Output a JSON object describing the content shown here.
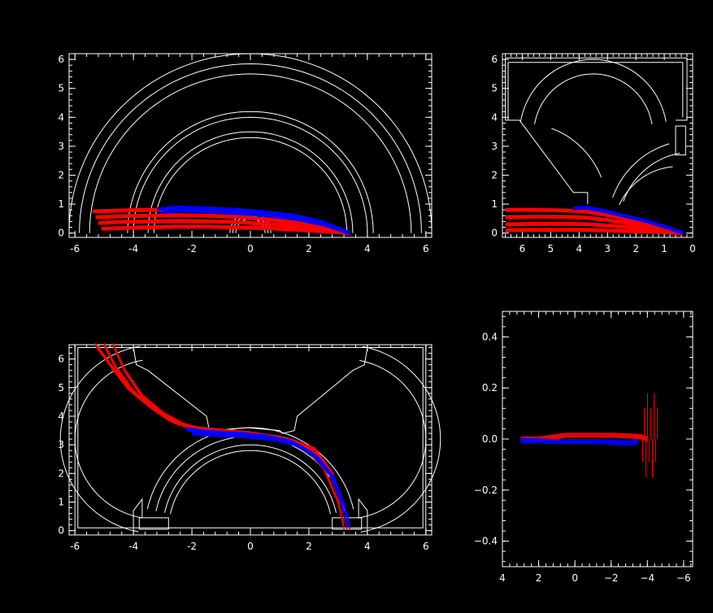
{
  "chart_data": [
    {
      "type": "line",
      "title": "",
      "xlabel": "",
      "ylabel": "",
      "xlim": [
        -6.2,
        6.2
      ],
      "ylim": [
        -0.15,
        6.2
      ],
      "x_ticks": [
        -6,
        -4,
        -2,
        0,
        2,
        4,
        6
      ],
      "y_ticks": [
        0,
        1,
        2,
        3,
        4,
        5,
        6
      ],
      "x_tick_labels": [
        "-6",
        "-4",
        "-2",
        "0",
        "2",
        "4",
        "6"
      ],
      "y_tick_labels": [
        "0",
        "1",
        "2",
        "3",
        "4",
        "5",
        "6"
      ],
      "grid": false,
      "colors": {
        "background": "#000000",
        "axes": "#ffffff",
        "outline": "#ffffff",
        "series_a": "#ff0000",
        "series_b": "#0000ff"
      },
      "arc_radii": [
        0.5,
        0.6,
        0.7,
        3.3,
        3.5,
        4.0,
        4.2,
        5.5,
        5.85,
        6.2
      ],
      "series": [
        {
          "color": "#ff0000",
          "x": [
            -5.4,
            -4.5,
            -3.5,
            -2.5,
            -1.5,
            -0.5,
            0.5,
            1.5,
            2.5,
            3.4
          ],
          "y": [
            0.75,
            0.78,
            0.8,
            0.8,
            0.78,
            0.72,
            0.62,
            0.48,
            0.28,
            0.0
          ]
        },
        {
          "color": "#ff0000",
          "x": [
            -5.3,
            -4.5,
            -3.5,
            -2.5,
            -1.5,
            -0.5,
            0.5,
            1.5,
            2.5,
            3.4
          ],
          "y": [
            0.55,
            0.58,
            0.6,
            0.62,
            0.6,
            0.56,
            0.48,
            0.36,
            0.2,
            0.0
          ]
        },
        {
          "color": "#ff0000",
          "x": [
            -5.2,
            -4.5,
            -3.5,
            -2.5,
            -1.5,
            -0.5,
            0.5,
            1.5,
            2.5,
            3.4
          ],
          "y": [
            0.35,
            0.38,
            0.4,
            0.42,
            0.41,
            0.38,
            0.32,
            0.24,
            0.13,
            0.0
          ]
        },
        {
          "color": "#ff0000",
          "x": [
            -5.1,
            -4.5,
            -3.5,
            -2.5,
            -1.5,
            -0.5,
            0.5,
            1.5,
            2.5,
            3.4
          ],
          "y": [
            0.15,
            0.17,
            0.2,
            0.22,
            0.22,
            0.2,
            0.17,
            0.12,
            0.06,
            0.0
          ]
        },
        {
          "color": "#0000ff",
          "x": [
            -3.2,
            -2.5,
            -1.5,
            -0.5,
            0.5,
            1.5,
            2.5,
            3.4
          ],
          "y": [
            0.82,
            0.88,
            0.85,
            0.8,
            0.72,
            0.6,
            0.36,
            0.0
          ]
        },
        {
          "color": "#0000ff",
          "x": [
            -3.0,
            -2.5,
            -1.5,
            -0.5,
            0.5,
            1.5,
            2.5,
            3.4
          ],
          "y": [
            0.72,
            0.78,
            0.76,
            0.7,
            0.62,
            0.5,
            0.3,
            0.0
          ]
        }
      ]
    },
    {
      "type": "line",
      "title": "",
      "xlabel": "",
      "ylabel": "",
      "xlim": [
        6.7,
        0
      ],
      "ylim": [
        -0.15,
        6.2
      ],
      "x_ticks": [
        6,
        5,
        4,
        3,
        2,
        1,
        0
      ],
      "y_ticks": [
        0,
        1,
        2,
        3,
        4,
        5,
        6
      ],
      "x_tick_labels": [
        "6",
        "5",
        "4",
        "3",
        "2",
        "1",
        "0"
      ],
      "y_tick_labels": [
        "0",
        "1",
        "2",
        "3",
        "4",
        "5",
        "6"
      ],
      "grid": false,
      "series": [
        {
          "color": "#ff0000",
          "x": [
            6.6,
            5.5,
            4.5,
            3.8,
            3.0,
            2.0,
            1.0,
            0.35
          ],
          "y": [
            0.8,
            0.8,
            0.78,
            0.75,
            0.62,
            0.42,
            0.2,
            0.0
          ]
        },
        {
          "color": "#ff0000",
          "x": [
            6.6,
            5.5,
            4.5,
            3.8,
            3.0,
            2.0,
            1.0,
            0.35
          ],
          "y": [
            0.55,
            0.57,
            0.56,
            0.54,
            0.45,
            0.3,
            0.14,
            0.0
          ]
        },
        {
          "color": "#ff0000",
          "x": [
            6.6,
            5.5,
            4.5,
            3.8,
            3.0,
            2.0,
            1.0,
            0.35
          ],
          "y": [
            0.3,
            0.32,
            0.32,
            0.31,
            0.26,
            0.18,
            0.08,
            0.0
          ]
        },
        {
          "color": "#ff0000",
          "x": [
            6.6,
            5.5,
            4.5,
            3.8,
            3.0,
            2.0,
            1.0,
            0.35
          ],
          "y": [
            0.1,
            0.11,
            0.11,
            0.11,
            0.09,
            0.06,
            0.03,
            0.0
          ]
        },
        {
          "color": "#0000ff",
          "x": [
            4.2,
            3.8,
            3.2,
            2.5,
            1.5,
            0.8,
            0.35
          ],
          "y": [
            0.85,
            0.88,
            0.78,
            0.62,
            0.38,
            0.16,
            0.0
          ]
        }
      ]
    },
    {
      "type": "line",
      "title": "",
      "xlabel": "",
      "ylabel": "",
      "xlim": [
        -6.2,
        6.2
      ],
      "ylim": [
        -0.15,
        6.5
      ],
      "x_ticks": [
        -6,
        -4,
        -2,
        0,
        2,
        4,
        6
      ],
      "y_ticks": [
        0,
        1,
        2,
        3,
        4,
        5,
        6
      ],
      "x_tick_labels": [
        "-6",
        "-4",
        "-2",
        "0",
        "2",
        "4",
        "6"
      ],
      "y_tick_labels": [
        "0",
        "1",
        "2",
        "3",
        "4",
        "5",
        "6"
      ],
      "grid": false,
      "series": [
        {
          "color": "#ff0000",
          "x": [
            -5.3,
            -4.8,
            -4.2,
            -3.5,
            -2.8,
            -2.0,
            -1.0,
            0.0,
            1.0,
            1.8,
            2.5,
            3.0,
            3.2
          ],
          "y": [
            6.5,
            5.8,
            5.0,
            4.4,
            3.9,
            3.6,
            3.5,
            3.4,
            3.25,
            3.0,
            2.2,
            1.0,
            0.1
          ]
        },
        {
          "color": "#ff0000",
          "x": [
            -5.0,
            -4.6,
            -4.0,
            -3.3,
            -2.6,
            -1.8,
            -0.8,
            0.2,
            1.2,
            2.0,
            2.7,
            3.1,
            3.3
          ],
          "y": [
            6.5,
            5.7,
            4.85,
            4.25,
            3.8,
            3.55,
            3.45,
            3.35,
            3.2,
            2.9,
            2.1,
            0.95,
            0.1
          ]
        },
        {
          "color": "#ff0000",
          "x": [
            -4.7,
            -4.3,
            -3.7,
            -3.0,
            -2.3,
            -1.5,
            -0.5,
            0.5,
            1.4,
            2.2,
            2.8,
            3.2,
            3.4
          ],
          "y": [
            6.5,
            5.6,
            4.7,
            4.1,
            3.7,
            3.5,
            3.4,
            3.3,
            3.15,
            2.85,
            2.0,
            0.9,
            0.1
          ]
        },
        {
          "color": "#0000ff",
          "x": [
            -2.2,
            -1.5,
            -0.5,
            0.5,
            1.4,
            2.1,
            2.7,
            3.1,
            3.3
          ],
          "y": [
            3.55,
            3.45,
            3.4,
            3.3,
            3.1,
            2.7,
            2.0,
            1.0,
            0.15
          ]
        },
        {
          "color": "#0000ff",
          "x": [
            -2.0,
            -1.2,
            -0.2,
            0.8,
            1.6,
            2.3,
            2.85,
            3.2,
            3.4
          ],
          "y": [
            3.4,
            3.35,
            3.3,
            3.2,
            3.0,
            2.55,
            1.85,
            0.9,
            0.15
          ]
        }
      ]
    },
    {
      "type": "line",
      "title": "",
      "xlabel": "",
      "ylabel": "",
      "xlim": [
        4,
        -6.5
      ],
      "ylim": [
        -0.5,
        0.5
      ],
      "x_ticks": [
        4,
        2,
        0,
        -2,
        -4,
        -6
      ],
      "y_ticks": [
        -0.4,
        -0.2,
        0.0,
        0.2,
        0.4
      ],
      "x_tick_labels": [
        "4",
        "2",
        "0",
        "−2",
        "−4",
        "−6"
      ],
      "y_tick_labels": [
        "−0.4",
        "−0.2",
        "0.0",
        "0.2",
        "0.4"
      ],
      "grid": false,
      "series": [
        {
          "color": "#ff0000",
          "x": [
            3.0,
            2.0,
            1.0,
            0.5,
            -1.0,
            -2.0,
            -3.0,
            -3.6,
            -4.0
          ],
          "y": [
            0.0,
            0.0,
            0.01,
            0.015,
            0.015,
            0.015,
            0.012,
            0.01,
            0.0
          ]
        },
        {
          "color": "#0000ff",
          "x": [
            3.0,
            2.0,
            1.0,
            0.0,
            -1.0,
            -2.0,
            -3.0,
            -3.5
          ],
          "y": [
            -0.005,
            -0.008,
            -0.01,
            -0.01,
            -0.01,
            -0.012,
            -0.015,
            -0.01
          ]
        }
      ]
    }
  ]
}
